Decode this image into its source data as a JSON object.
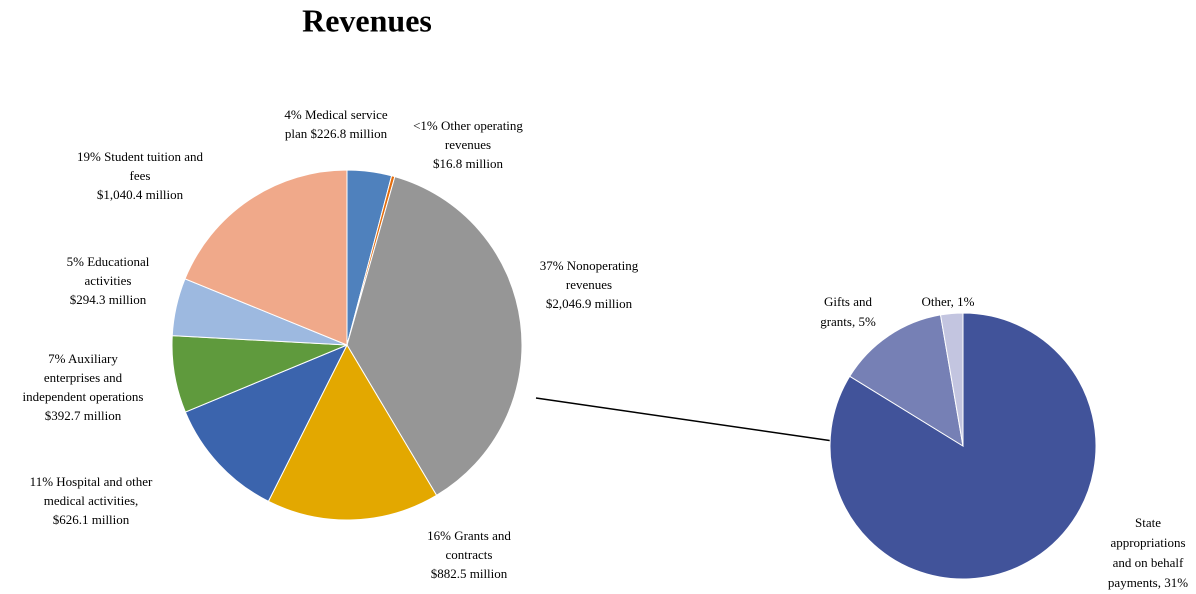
{
  "chart_data": {
    "type": "pie",
    "title": "Revenues",
    "values": [
      226.8,
      16.8,
      2046.9,
      882.5,
      626.1,
      392.7,
      294.3,
      1040.4
    ],
    "colors": [
      "#4f81bd",
      "#e46c0a",
      "#969696",
      "#e3a800",
      "#3b64ad",
      "#5f9a3d",
      "#9db9e0",
      "#f0a98a"
    ],
    "labels": [
      [
        "4% Medical service",
        "plan $226.8 million"
      ],
      [
        "<1% Other operating",
        "revenues",
        "$16.8 million"
      ],
      [
        "37% Nonoperating",
        "revenues",
        "$2,046.9 million"
      ],
      [
        "16% Grants and",
        "contracts",
        "$882.5 million"
      ],
      [
        "11% Hospital and other",
        "medical activities,",
        "$626.1 million"
      ],
      [
        "7% Auxiliary",
        "enterprises and",
        "independent operations",
        "$392.7 million"
      ],
      [
        "5% Educational",
        "activities",
        "$294.3 million"
      ],
      [
        "19% Student tuition and",
        "fees",
        "$1,040.4 million"
      ]
    ],
    "secondary": {
      "type": "pie",
      "values": [
        31,
        5,
        1
      ],
      "colors": [
        "#41539a",
        "#7680b5",
        "#c3c5e0"
      ],
      "labels": [
        [
          "State",
          "appropriations",
          "and on behalf",
          "payments, 31%"
        ],
        [
          "Gifts and",
          "grants, 5%"
        ],
        [
          "Other, 1%"
        ]
      ]
    }
  }
}
